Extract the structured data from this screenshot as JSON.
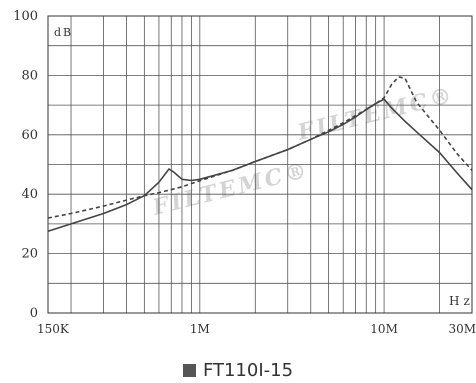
{
  "chart_data": {
    "type": "line",
    "x_scale": "log",
    "x_unit": "Hz",
    "y_unit": "dB",
    "xlim": [
      150000,
      30000000
    ],
    "ylim": [
      0,
      100
    ],
    "y_ticks": [
      0,
      20,
      40,
      60,
      80,
      100
    ],
    "x_tick_labels": [
      {
        "value": 150000,
        "label": "150K"
      },
      {
        "value": 1000000,
        "label": "1M"
      },
      {
        "value": 10000000,
        "label": "10M"
      },
      {
        "value": 30000000,
        "label": "30M"
      }
    ],
    "grid": true,
    "legend": "bottom",
    "legend_label": "FT110I-15",
    "watermark": "FILTEMC®",
    "series": [
      {
        "style": "solid",
        "color": "#444444",
        "points": [
          [
            150000,
            27.5
          ],
          [
            200000,
            30
          ],
          [
            300000,
            33.5
          ],
          [
            400000,
            36.5
          ],
          [
            500000,
            39.5
          ],
          [
            600000,
            44
          ],
          [
            680000,
            48.5
          ],
          [
            720000,
            47.5
          ],
          [
            800000,
            45
          ],
          [
            900000,
            44.6
          ],
          [
            1000000,
            45
          ],
          [
            1500000,
            48
          ],
          [
            2000000,
            51
          ],
          [
            3000000,
            55
          ],
          [
            4000000,
            58.5
          ],
          [
            5000000,
            61
          ],
          [
            6000000,
            63.5
          ],
          [
            7000000,
            66
          ],
          [
            8000000,
            68.5
          ],
          [
            9000000,
            70.5
          ],
          [
            10000000,
            72
          ],
          [
            11000000,
            69
          ],
          [
            13000000,
            64.5
          ],
          [
            15000000,
            61
          ],
          [
            20000000,
            54
          ],
          [
            25000000,
            47
          ],
          [
            30000000,
            41.5
          ]
        ]
      },
      {
        "style": "dashed",
        "color": "#444444",
        "points": [
          [
            150000,
            32
          ],
          [
            200000,
            33.5
          ],
          [
            300000,
            36
          ],
          [
            400000,
            38
          ],
          [
            500000,
            39.5
          ],
          [
            600000,
            40.5
          ],
          [
            800000,
            42.5
          ],
          [
            1000000,
            44.5
          ],
          [
            1500000,
            48
          ],
          [
            2000000,
            51
          ],
          [
            3000000,
            55
          ],
          [
            4000000,
            58.5
          ],
          [
            5000000,
            61.5
          ],
          [
            6000000,
            64
          ],
          [
            7000000,
            66.5
          ],
          [
            8000000,
            68.5
          ],
          [
            9000000,
            70.5
          ],
          [
            10000000,
            72.5
          ],
          [
            11000000,
            77
          ],
          [
            12000000,
            79.5
          ],
          [
            13000000,
            79
          ],
          [
            15000000,
            71
          ],
          [
            20000000,
            61.5
          ],
          [
            25000000,
            53.5
          ],
          [
            30000000,
            48
          ]
        ]
      }
    ]
  }
}
